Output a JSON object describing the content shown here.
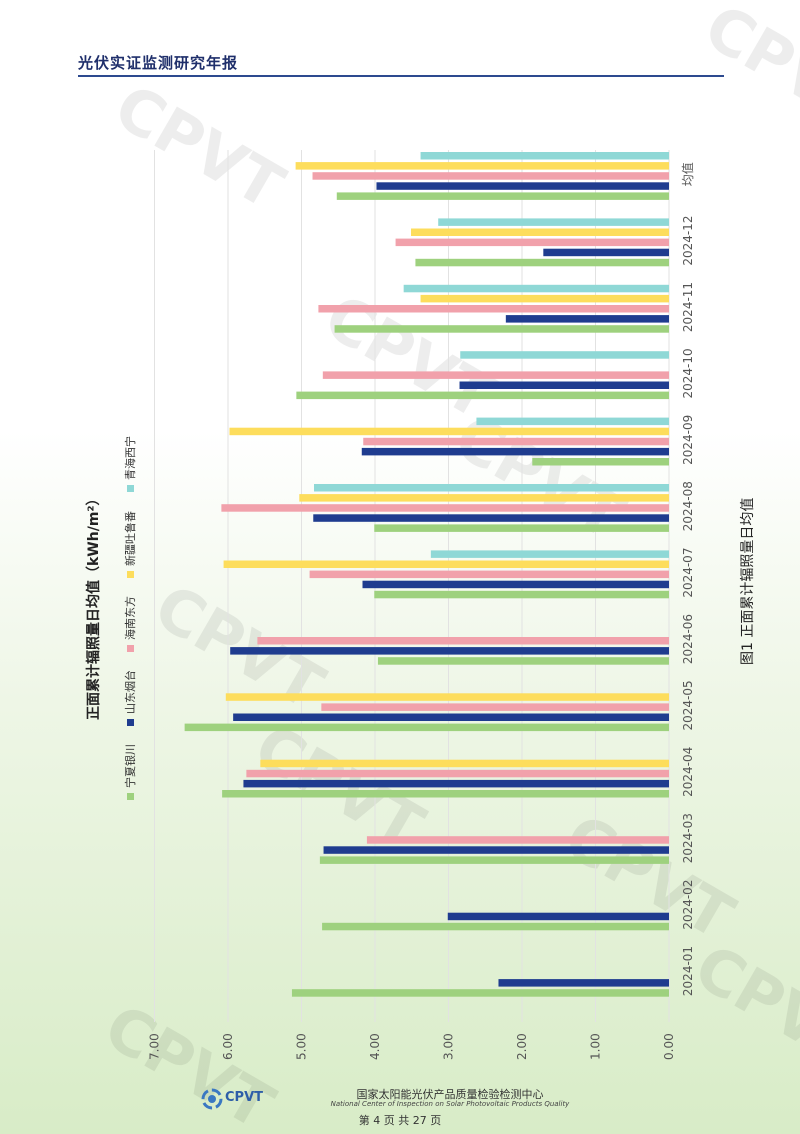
{
  "header": {
    "title": "光伏实证监测研究年报"
  },
  "footer": {
    "logo_text": "CPVT",
    "center_name_cn": "国家太阳能光伏产品质量检验检测中心",
    "center_name_en": "National Center of Inspection on Solar Photovoltaic Products Quality",
    "page": "第 4 页 共 27 页"
  },
  "watermark": "CPVT",
  "colors": {
    "series": [
      "#9ed17e",
      "#1f3c8f",
      "#f1a1ab",
      "#fddd5c",
      "#8fd8d6"
    ],
    "grid": "#e2e2e2",
    "axis_text": "#555555"
  },
  "chart_data": {
    "type": "bar",
    "orientation": "horizontal bars on a page rotated 90°",
    "title": "正面累计辐照量日均值（kWh/m²）",
    "caption": "图1  正面累计辐照量日均值",
    "categories": [
      "2024-01",
      "2024-02",
      "2024-03",
      "2024-04",
      "2024-05",
      "2024-06",
      "2024-07",
      "2024-08",
      "2024-09",
      "2024-10",
      "2024-11",
      "2024-12",
      "均值"
    ],
    "series": [
      {
        "name": "宁夏银川",
        "values": [
          5.13,
          4.72,
          4.75,
          6.08,
          6.59,
          3.96,
          4.01,
          4.01,
          1.86,
          5.07,
          4.55,
          3.45,
          4.52
        ]
      },
      {
        "name": "山东烟台",
        "values": [
          2.32,
          3.01,
          4.7,
          5.79,
          5.93,
          5.97,
          4.17,
          4.84,
          4.18,
          2.85,
          2.22,
          1.71,
          3.98
        ]
      },
      {
        "name": "海南东方",
        "values": [
          null,
          null,
          4.11,
          5.75,
          4.73,
          5.6,
          4.89,
          6.09,
          4.16,
          4.71,
          4.77,
          3.72,
          4.85
        ]
      },
      {
        "name": "新疆吐鲁番",
        "values": [
          null,
          null,
          null,
          5.56,
          6.03,
          null,
          6.06,
          5.03,
          5.98,
          null,
          3.38,
          3.51,
          5.08
        ]
      },
      {
        "name": "青海西宁",
        "values": [
          null,
          null,
          null,
          null,
          null,
          null,
          3.24,
          4.83,
          2.62,
          2.84,
          3.61,
          3.14,
          3.38
        ]
      }
    ],
    "tick_labels": [
      "0.00",
      "1.00",
      "2.00",
      "3.00",
      "4.00",
      "5.00",
      "6.00",
      "7.00"
    ],
    "ylim": [
      0,
      7
    ],
    "grid": true,
    "legend": "left"
  }
}
